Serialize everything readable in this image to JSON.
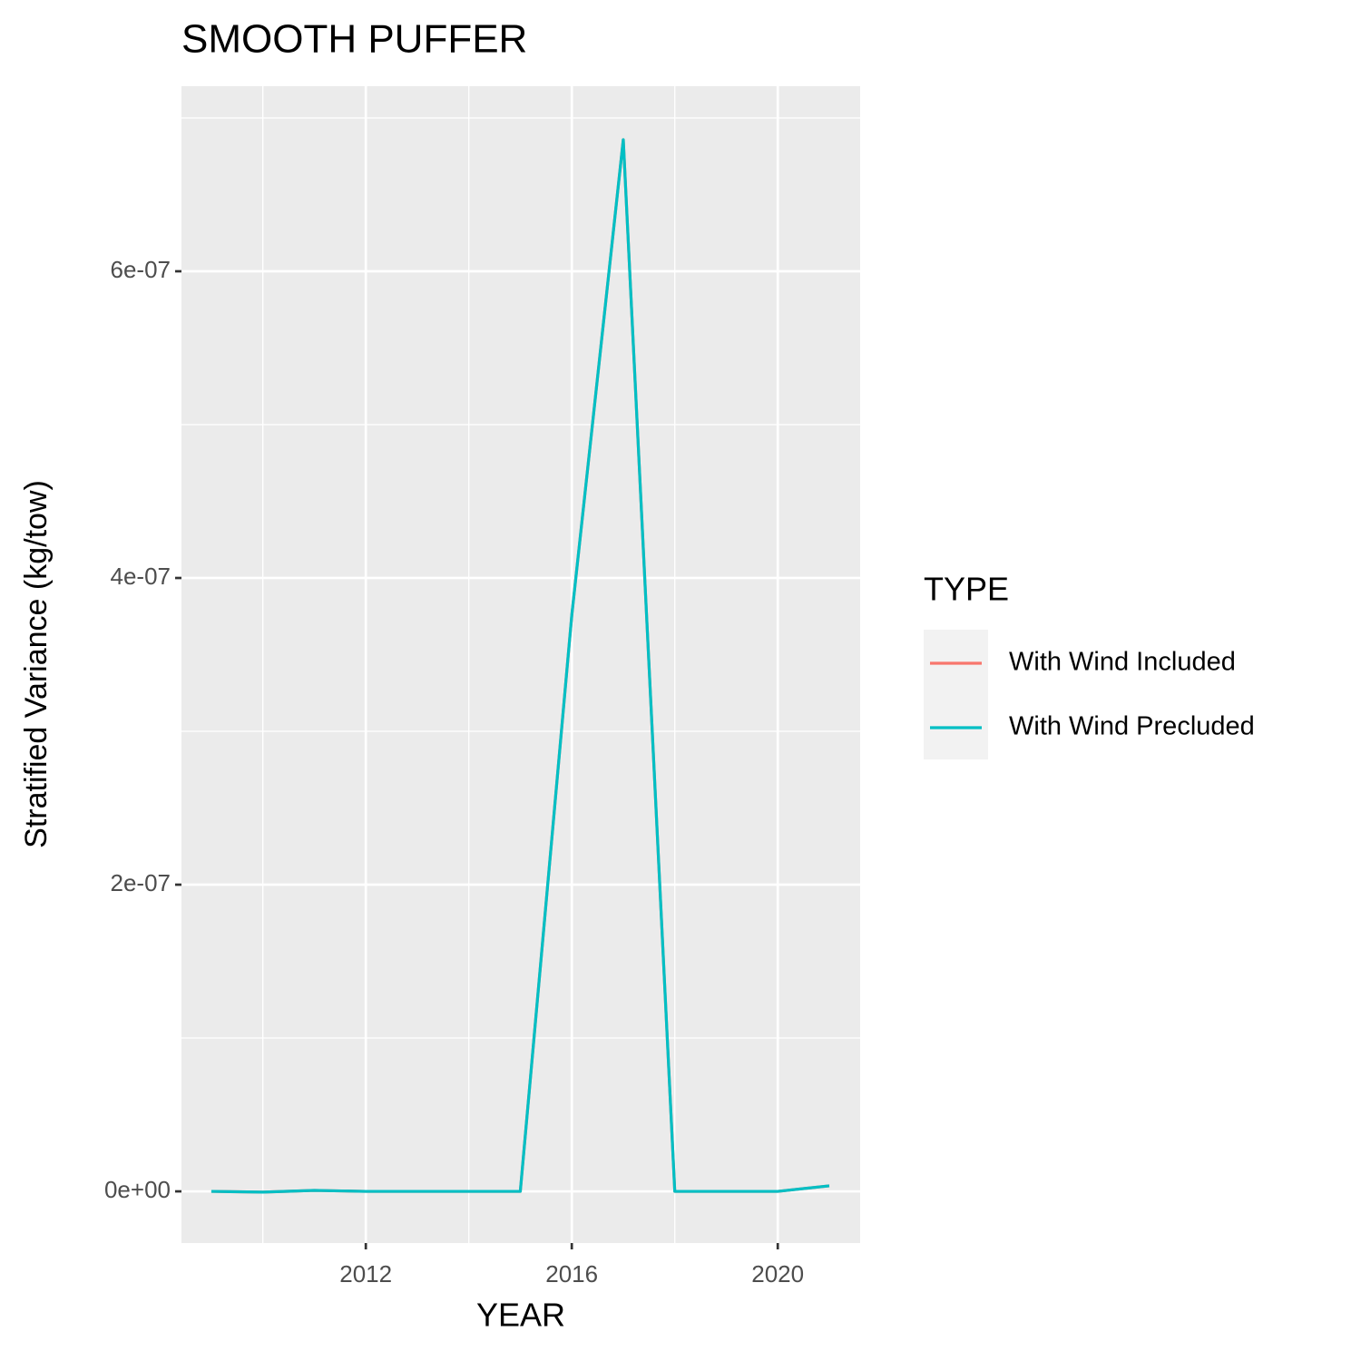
{
  "chart_data": {
    "type": "line",
    "title": "SMOOTH PUFFER",
    "x_label": "YEAR",
    "y_label": "Stratified Variance (kg/tow)",
    "x": [
      2009,
      2010,
      2011,
      2012,
      2013,
      2014,
      2015,
      2016,
      2017,
      2018,
      2019,
      2020,
      2021
    ],
    "series": [
      {
        "name": "With Wind Included",
        "color": "#f8766d",
        "values": [
          0,
          -5e-10,
          6e-10,
          0,
          0,
          0,
          0,
          3.757e-07,
          6.858e-07,
          0,
          0,
          0,
          3.6e-09
        ]
      },
      {
        "name": "With Wind Precluded",
        "color": "#00bfc4",
        "values": [
          0,
          -5e-10,
          6e-10,
          0,
          0,
          0,
          0,
          3.757e-07,
          6.858e-07,
          0,
          0,
          0,
          3.6e-09
        ]
      }
    ],
    "xlim": [
      2008.42,
      2021.6
    ],
    "ylim": [
      -3.37e-08,
      7.207e-07
    ],
    "xticks": [
      2012,
      2016,
      2020
    ],
    "yticks": [
      {
        "value": 0,
        "label": "0e+00"
      },
      {
        "value": 2e-07,
        "label": "2e-07"
      },
      {
        "value": 4e-07,
        "label": "4e-07"
      },
      {
        "value": 6e-07,
        "label": "6e-07"
      }
    ],
    "x_minor_grid": [
      2010,
      2014,
      2018
    ],
    "y_minor_grid": [
      1e-07,
      3e-07,
      5e-07,
      7e-07
    ],
    "grid": true,
    "legend_title": "TYPE",
    "legend_position": "right"
  }
}
